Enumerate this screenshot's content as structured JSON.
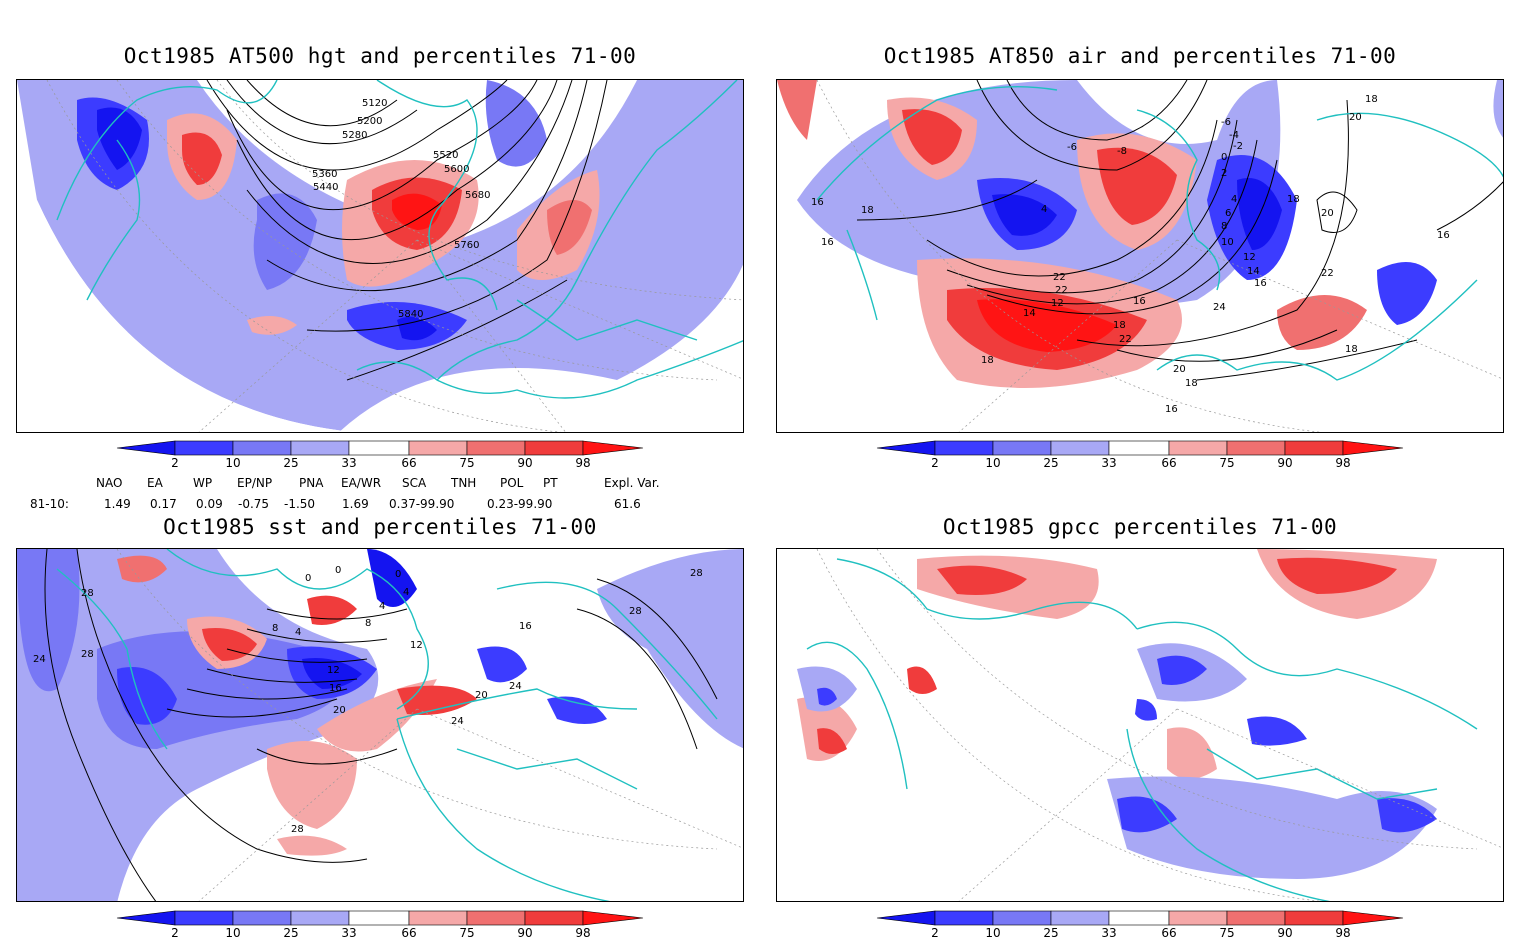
{
  "panels": [
    {
      "id": "p1",
      "title": "Oct1985 AT500 hgt and percentiles 71-00",
      "contour_labels": [
        "5120",
        "5200",
        "5280",
        "5360",
        "5440",
        "5520",
        "5600",
        "5680",
        "5760",
        "5840"
      ]
    },
    {
      "id": "p2",
      "title": "Oct1985 AT850 air and percentiles 71-00",
      "contour_labels": [
        "18",
        "20",
        "16",
        "18",
        "16",
        "-6",
        "-4",
        "-2",
        "0",
        "-8",
        "-6",
        "4",
        "2",
        "4",
        "6",
        "8",
        "10",
        "12",
        "14",
        "16",
        "18",
        "20",
        "22",
        "24",
        "22",
        "22",
        "12",
        "14",
        "16",
        "18",
        "22",
        "16",
        "18",
        "20",
        "18",
        "16",
        "18"
      ]
    },
    {
      "id": "p3",
      "title": "Oct1985 sst and percentiles 71-00",
      "contour_labels": [
        "28",
        "28",
        "28",
        "24",
        "0",
        "0",
        "0",
        "4",
        "4",
        "8",
        "4",
        "8",
        "12",
        "16",
        "20",
        "24",
        "12",
        "16",
        "20",
        "24",
        "28",
        "28"
      ]
    },
    {
      "id": "p4",
      "title": "Oct1985 gpcc percentiles 71-00",
      "contour_labels": []
    }
  ],
  "colorbar": {
    "labels": [
      "2",
      "10",
      "25",
      "33",
      "66",
      "75",
      "90",
      "98"
    ],
    "colors": {
      "dark_blue": "#1414f0",
      "blue": "#3c3cff",
      "mid_blue": "#7878f5",
      "light_blue": "#a8a8f5",
      "light_red": "#f5a8a8",
      "mid_red": "#f07070",
      "red": "#f03c3c",
      "dark_red": "#ff1414"
    }
  },
  "indices": {
    "headers": [
      "NAO",
      "EA",
      "WP",
      "EP/NP",
      "PNA",
      "EA/WR",
      "SCA",
      "TNH",
      "POL",
      "PT",
      "Expl. Var."
    ],
    "row_label": "81-10:",
    "values": [
      "1.49",
      "0.17",
      "0.09",
      "-0.75",
      "-1.50",
      "1.69",
      "0.37-99.90",
      "0.23-99.90",
      "61.6"
    ]
  },
  "map_colors": {
    "coastline": "#20c0c0",
    "contour": "#000000",
    "grid": "#999999"
  }
}
